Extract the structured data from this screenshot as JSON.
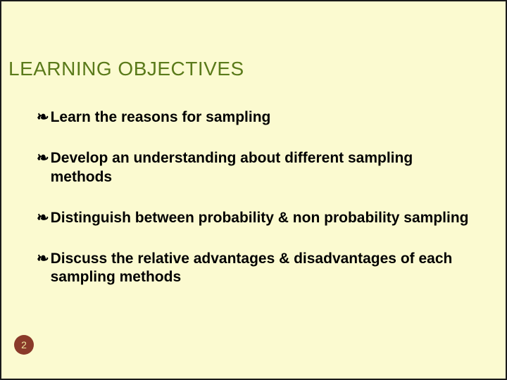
{
  "slide": {
    "title": "LEARNING OBJECTIVES",
    "title_color": "#5a7a1a",
    "title_fontsize": 28,
    "background_color": "#fbfad0",
    "border_color": "#1a1a1a",
    "text_color": "#000000",
    "bullet_fontsize": 21,
    "bullet_glyph": "❧",
    "page_number": "2",
    "page_badge_bg": "#8a3a2a",
    "page_badge_fg": "#f0e8a0"
  },
  "objectives": [
    {
      "text": "Learn  the reasons for sampling"
    },
    {
      "text": "Develop an understanding about different sampling methods"
    },
    {
      "text": "Distinguish between probability & non probability sampling"
    },
    {
      "text": "Discuss the relative advantages & disadvantages of each sampling methods"
    }
  ]
}
